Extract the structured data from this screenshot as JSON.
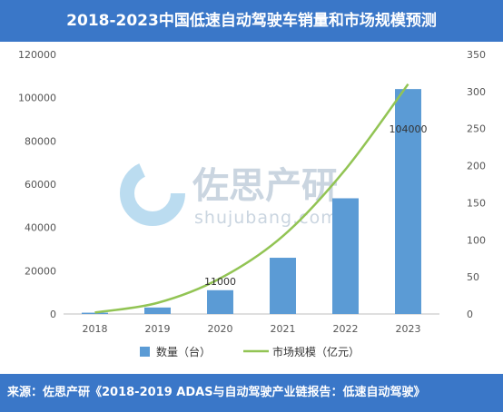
{
  "title": "2018-2023中国低速自动驾驶车销量和市场规模预测",
  "footer": "来源：佐思产研《2018-2019 ADAS与自动驾驶产业链报告：低速自动驾驶》",
  "watermark": {
    "cn": "佐思产研",
    "en": "shujubang.com"
  },
  "colors": {
    "bar": "#5b9bd5",
    "line": "#92c454",
    "header": "#3a77c8"
  },
  "chart_data": {
    "type": "bar",
    "categories": [
      "2018",
      "2019",
      "2020",
      "2021",
      "2022",
      "2023"
    ],
    "series": [
      {
        "name": "数量（台）",
        "type": "bar",
        "axis": "left",
        "values": [
          600,
          3000,
          11000,
          26000,
          53500,
          104000
        ]
      },
      {
        "name": "市场规模（亿元）",
        "type": "line",
        "axis": "right",
        "values": [
          2,
          15,
          48,
          105,
          195,
          310
        ]
      }
    ],
    "data_labels": [
      {
        "category": "2020",
        "text": "11000"
      },
      {
        "category": "2023",
        "text": "104000"
      }
    ],
    "y_left": {
      "range": [
        0,
        120000
      ],
      "ticks": [
        "0",
        "20000",
        "40000",
        "60000",
        "80000",
        "100000",
        "120000"
      ]
    },
    "y_right": {
      "range": [
        0,
        350
      ],
      "ticks": [
        "0",
        "50",
        "100",
        "150",
        "200",
        "250",
        "300",
        "350"
      ]
    },
    "grid": false,
    "legend": "bottom"
  }
}
